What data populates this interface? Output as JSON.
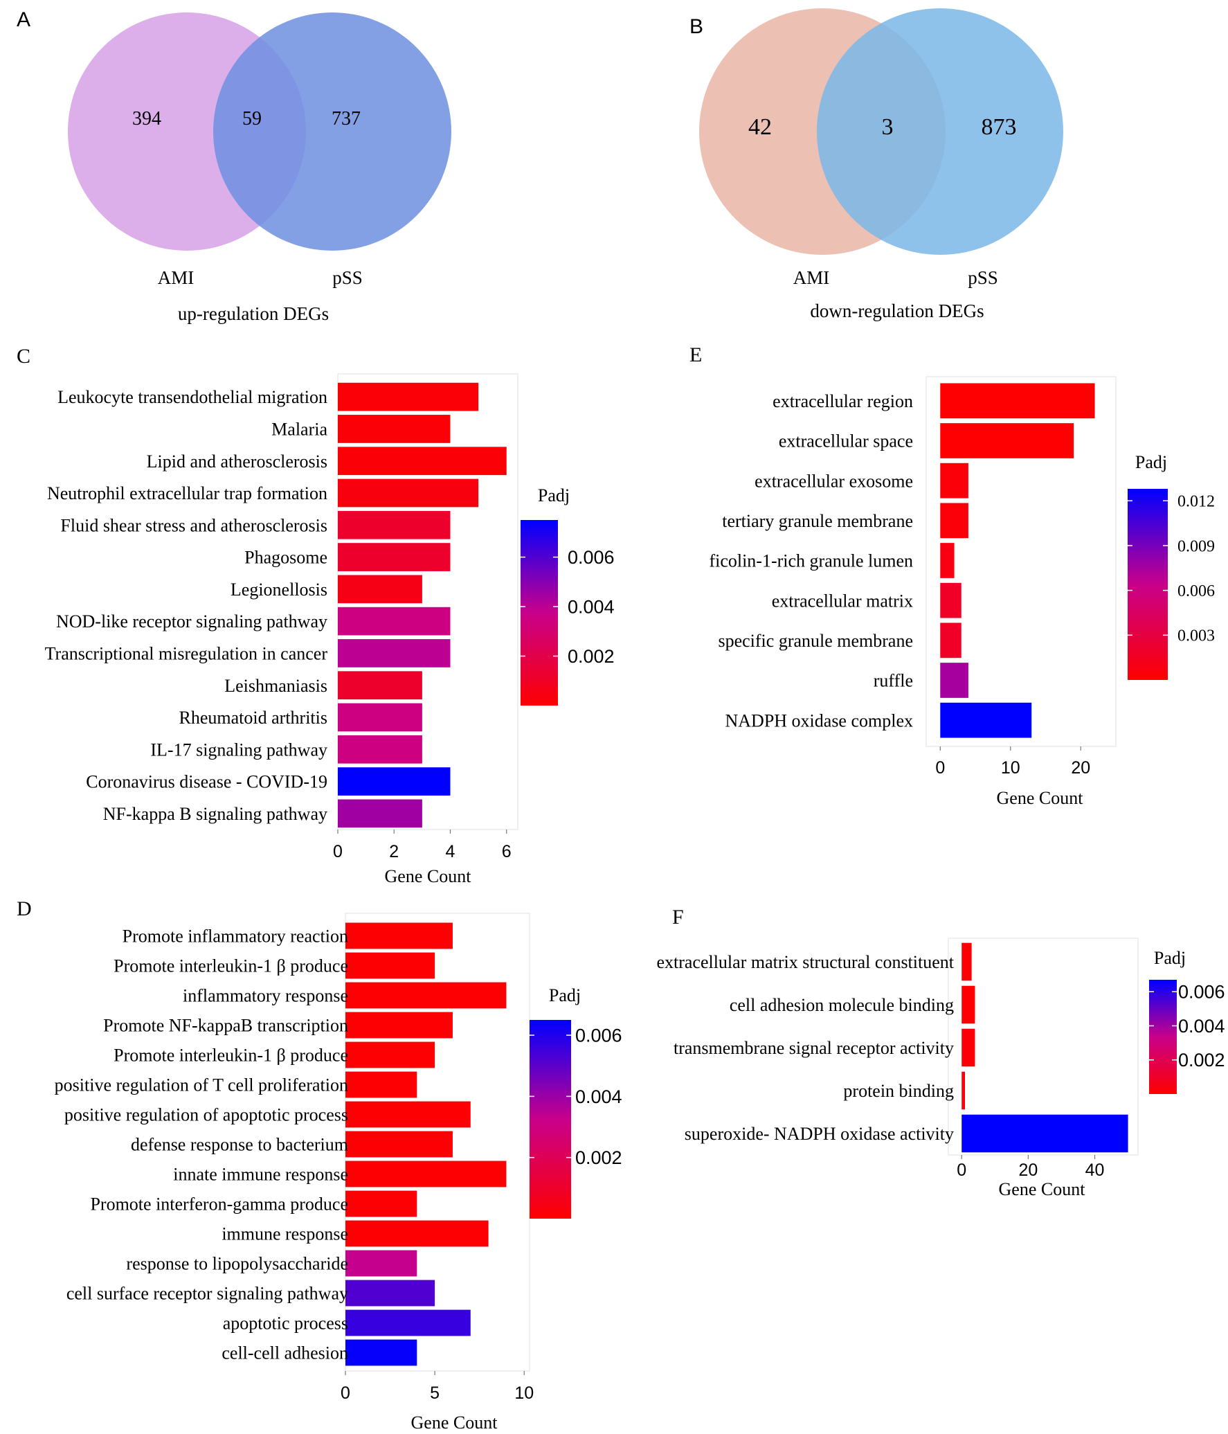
{
  "colors": {
    "low": "#ff0000",
    "mid": "#c8008a",
    "high": "#0000ff"
  },
  "chart_data": [
    {
      "panel": "A",
      "type": "venn",
      "sets": [
        "AMI",
        "pSS"
      ],
      "counts": {
        "left_only": "394",
        "intersection": "59",
        "right_only": "737"
      },
      "caption": "up-regulation DEGs",
      "colors": {
        "left": "#dcaeea",
        "right": "#6e8fe0",
        "overlap": "#7b82df"
      }
    },
    {
      "panel": "B",
      "type": "venn",
      "sets": [
        "AMI",
        "pSS"
      ],
      "counts": {
        "left_only": "42",
        "intersection": "3",
        "right_only": "873"
      },
      "caption": "down-regulation DEGs",
      "colors": {
        "left": "#edc0b4",
        "right": "#7ab7e6",
        "overlap": "#86a7c9"
      }
    },
    {
      "panel": "C",
      "type": "bar",
      "orientation": "horizontal",
      "categories": [
        "Leukocyte transendothelial migration",
        "Malaria",
        "Lipid and atherosclerosis",
        "Neutrophil extracellular trap formation",
        "Fluid shear stress and atherosclerosis",
        "Phagosome",
        "Legionellosis",
        "NOD-like receptor signaling pathway",
        "Transcriptional misregulation in cancer",
        "Leishmaniasis",
        "Rheumatoid arthritis",
        "IL-17 signaling pathway",
        "Coronavirus disease - COVID-19",
        "NF-kappa B signaling pathway"
      ],
      "values": [
        5,
        4,
        6,
        5,
        4,
        4,
        3,
        4,
        4,
        3,
        3,
        3,
        4,
        3
      ],
      "padj": [
        0.0002,
        0.0002,
        0.0002,
        0.0004,
        0.0012,
        0.0012,
        0.0006,
        0.0035,
        0.004,
        0.0012,
        0.0035,
        0.0035,
        0.0075,
        0.0045
      ],
      "xlabel": "Gene Count",
      "xlim": [
        0,
        6.4
      ],
      "xticks": [
        0,
        2,
        4,
        6
      ],
      "legend": {
        "title": "Padj",
        "range": [
          0,
          0.0075
        ],
        "ticks": [
          0.006,
          0.004,
          0.002
        ],
        "tick_labels": [
          "0.006",
          "0.004",
          "0.002"
        ],
        "position": "right"
      }
    },
    {
      "panel": "D",
      "type": "bar",
      "orientation": "horizontal",
      "categories": [
        "Promote inflammatory reaction",
        "Promote interleukin-1 β produce",
        "inflammatory response",
        "Promote NF-kappaB transcription",
        "Promote interleukin-1 β produce",
        "positive regulation of T cell proliferation",
        "positive regulation of apoptotic process",
        "defense response to bacterium",
        "innate immune response",
        "Promote interferon-gamma produce",
        "immune response",
        "response to lipopolysaccharide",
        "cell surface receptor signaling pathway",
        "apoptotic process",
        "cell-cell adhesion"
      ],
      "values": [
        6,
        5,
        9,
        6,
        5,
        4,
        7,
        6,
        9,
        4,
        8,
        4,
        5,
        7,
        4
      ],
      "padj": [
        0.0001,
        0.0001,
        0.0001,
        0.0001,
        0.0001,
        0.0001,
        0.0001,
        0.0001,
        0.0001,
        0.0001,
        0.0001,
        0.0033,
        0.0052,
        0.0056,
        0.0064
      ],
      "xlabel": "Gene Count",
      "xlim": [
        0,
        10.3
      ],
      "xticks": [
        0,
        5,
        10
      ],
      "legend": {
        "title": "Padj",
        "range": [
          0,
          0.0065
        ],
        "ticks": [
          0.006,
          0.004,
          0.002
        ],
        "tick_labels": [
          "0.006",
          "0.004",
          "0.002"
        ],
        "position": "right"
      }
    },
    {
      "panel": "E",
      "type": "bar",
      "orientation": "horizontal",
      "categories": [
        "extracellular region",
        "extracellular space",
        "extracellular exosome",
        "tertiary granule membrane",
        "ficolin-1-rich granule lumen",
        "extracellular matrix",
        "specific granule membrane",
        "ruffle",
        "NADPH oxidase complex"
      ],
      "values": [
        22,
        19,
        4,
        4,
        2,
        3,
        3,
        4,
        13
      ],
      "padj": [
        0.0001,
        0.0001,
        0.0004,
        0.0004,
        0.0008,
        0.0018,
        0.0018,
        0.0075,
        0.0128
      ],
      "xlabel": "Gene Count",
      "xlim": [
        -2,
        25
      ],
      "xticks": [
        0,
        10,
        20
      ],
      "legend": {
        "title": "Padj",
        "range": [
          0,
          0.0128
        ],
        "ticks": [
          0.012,
          0.009,
          0.006,
          0.003
        ],
        "tick_labels": [
          "0.012",
          "0.009",
          "0.006",
          "0.003"
        ],
        "position": "right"
      }
    },
    {
      "panel": "F",
      "type": "bar",
      "orientation": "horizontal",
      "categories": [
        "extracellular matrix structural constituent",
        "cell adhesion molecule binding",
        "transmembrane signal receptor activity",
        "protein binding",
        "superoxide- NADPH oxidase activity"
      ],
      "values": [
        3,
        4,
        4,
        1,
        50
      ],
      "padj": [
        0.0001,
        0.0001,
        0.0002,
        0.0003,
        0.0067
      ],
      "xlabel": "Gene Count",
      "xlim": [
        -4,
        53
      ],
      "xticks": [
        0,
        20,
        40
      ],
      "legend": {
        "title": "Padj",
        "range": [
          0,
          0.0067
        ],
        "ticks": [
          0.006,
          0.004,
          0.002
        ],
        "tick_labels": [
          "0.006",
          "0.004",
          "0.002"
        ],
        "position": "right"
      }
    }
  ]
}
